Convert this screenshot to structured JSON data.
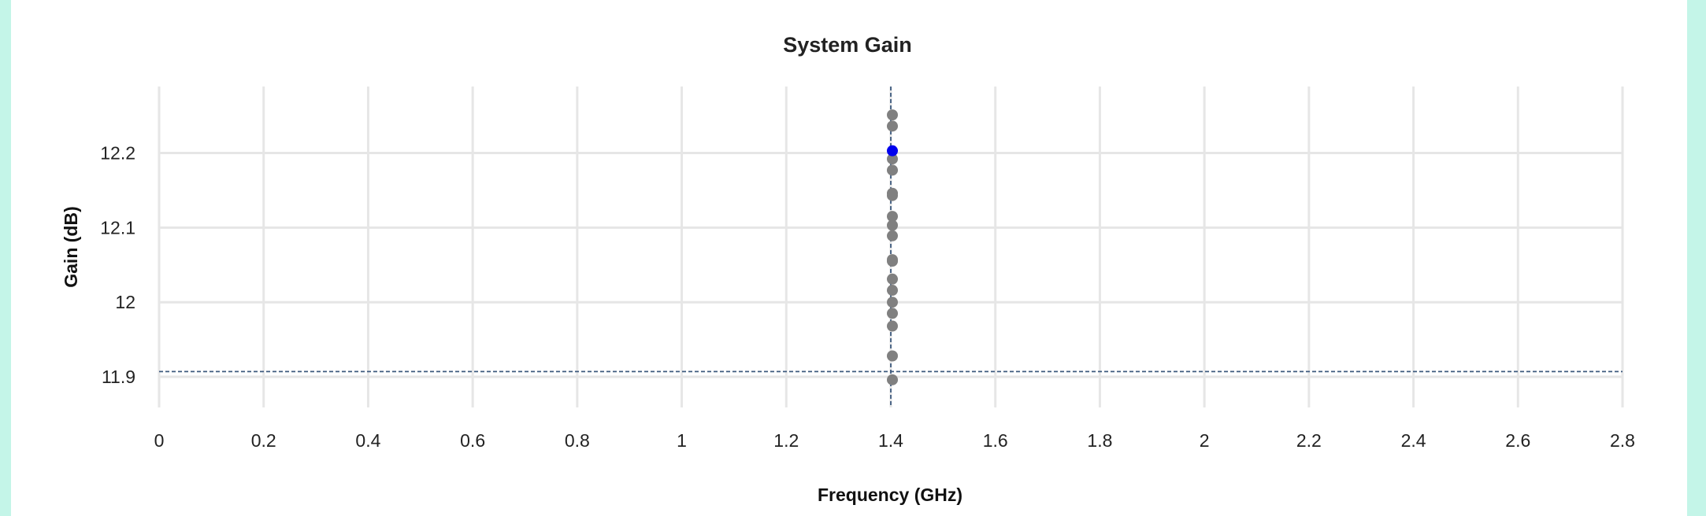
{
  "chart_data": {
    "type": "scatter",
    "title": "System Gain",
    "xlabel": "Frequency (GHz)",
    "ylabel": "Gain (dB)",
    "xlim": [
      0,
      2.8
    ],
    "ylim": [
      11.86,
      12.3
    ],
    "xticks": [
      "0",
      "0.2",
      "0.4",
      "0.6",
      "0.8",
      "1",
      "1.2",
      "1.4",
      "1.6",
      "1.8",
      "2",
      "2.2",
      "2.4",
      "2.6",
      "2.8"
    ],
    "yticks": [
      "11.9",
      "12",
      "12.1",
      "12.2"
    ],
    "grid": true,
    "reference_lines": {
      "x": 1.4,
      "y": 11.907
    },
    "points": [
      {
        "x": 1.4,
        "y": 12.251
      },
      {
        "x": 1.4,
        "y": 12.236
      },
      {
        "x": 1.4,
        "y": 12.203,
        "highlighted": true
      },
      {
        "x": 1.4,
        "y": 12.192
      },
      {
        "x": 1.4,
        "y": 12.177
      },
      {
        "x": 1.4,
        "y": 12.146
      },
      {
        "x": 1.4,
        "y": 12.143
      },
      {
        "x": 1.4,
        "y": 12.115
      },
      {
        "x": 1.4,
        "y": 12.103
      },
      {
        "x": 1.4,
        "y": 12.089
      },
      {
        "x": 1.4,
        "y": 12.057
      },
      {
        "x": 1.4,
        "y": 12.055
      },
      {
        "x": 1.4,
        "y": 12.031
      },
      {
        "x": 1.4,
        "y": 12.016
      },
      {
        "x": 1.4,
        "y": 12.0
      },
      {
        "x": 1.4,
        "y": 11.985
      },
      {
        "x": 1.4,
        "y": 11.968
      },
      {
        "x": 1.4,
        "y": 11.928
      },
      {
        "x": 1.4,
        "y": 11.896
      }
    ],
    "colors": {
      "point": "#808080",
      "highlight": "#0000ee",
      "reference_line": "#3e5a7e",
      "grid": "#e6e6e6"
    }
  }
}
